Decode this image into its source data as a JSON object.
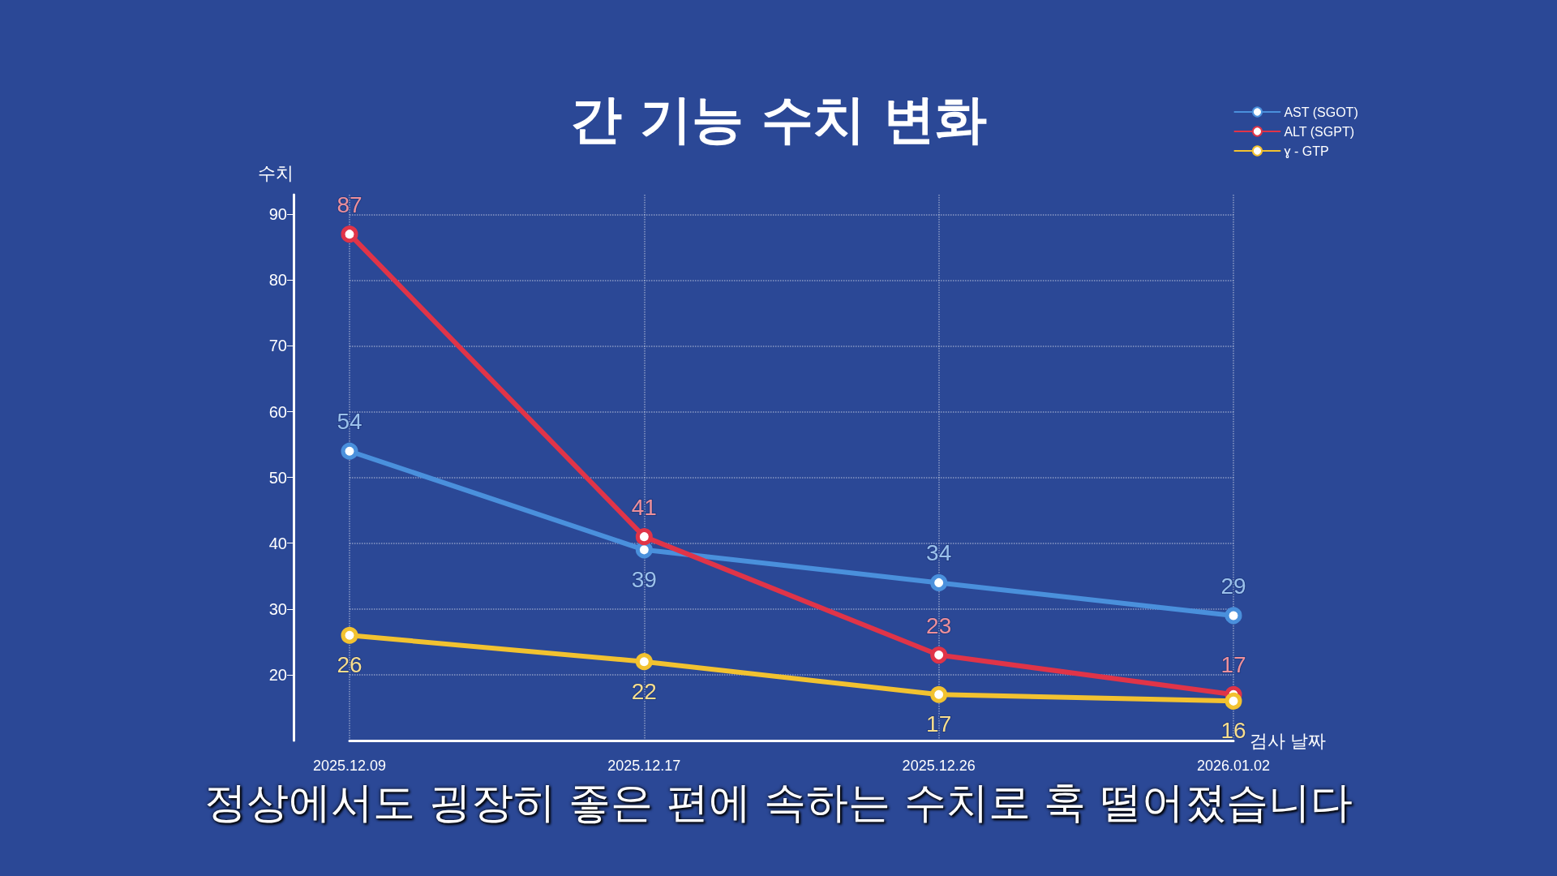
{
  "chart_data": {
    "type": "line",
    "title": "간 기능 수치 변화",
    "xlabel": "검사 날짜",
    "ylabel": "수치",
    "categories": [
      "2025.12.09",
      "2025.12.17",
      "2025.12.26",
      "2026.01.02"
    ],
    "series": [
      {
        "name": "AST (SGOT)",
        "color": "#4a90dc",
        "values": [
          54,
          39,
          34,
          29
        ]
      },
      {
        "name": "ALT (SGPT)",
        "color": "#e03448",
        "values": [
          87,
          41,
          23,
          17
        ]
      },
      {
        "name": "ɣ - GTP",
        "color": "#f2c230",
        "values": [
          26,
          22,
          17,
          16
        ]
      }
    ],
    "ylim": [
      10,
      93
    ],
    "yticks": [
      20,
      30,
      40,
      50,
      60,
      70,
      80,
      90
    ],
    "grid": true,
    "legend": "top right",
    "marker": "circle",
    "line_style": "solid",
    "data_labels": true,
    "annotations": [
      "정상에서도 굉장히 좋은 편에 속하는 수치로 훅 떨어졌습니다"
    ]
  }
}
